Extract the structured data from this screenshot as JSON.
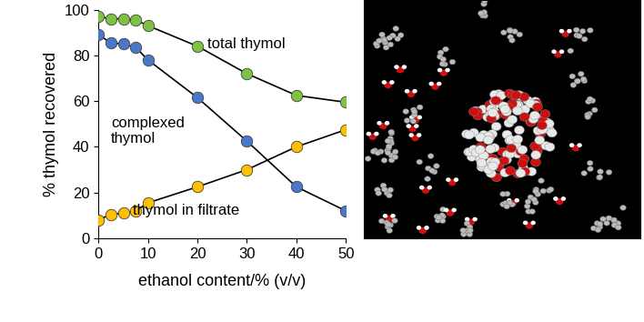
{
  "chart_data": {
    "type": "line",
    "x_label": "ethanol content/% (v/v)",
    "y_label": "% thymol recovered",
    "x": [
      0,
      2.5,
      5,
      7.5,
      10,
      20,
      30,
      40,
      50
    ],
    "series": [
      {
        "name": "total thymol",
        "color": "#7dc243",
        "marker": "o",
        "line_style": "solid",
        "values": [
          97,
          96,
          96,
          95.5,
          93,
          84,
          72,
          62.5,
          59.5
        ]
      },
      {
        "name": "complexed\nthymol",
        "color": "#4a78c8",
        "marker": "o",
        "line_style": "solid",
        "values": [
          89,
          85.5,
          85,
          83.5,
          78,
          61.5,
          42.5,
          22.5,
          12
        ]
      },
      {
        "name": "thymol in filtrate",
        "color": "#ffc000",
        "marker": "o",
        "line_style": "solid",
        "values": [
          8,
          10.5,
          11,
          12,
          15.5,
          22.5,
          30,
          40,
          47.5
        ]
      }
    ],
    "xlim": [
      0,
      50
    ],
    "xticks": [
      0,
      10,
      20,
      30,
      40,
      50
    ],
    "ylim": [
      0,
      100
    ],
    "yticks": [
      0,
      20,
      40,
      60,
      80,
      100
    ],
    "grid": false
  }
}
